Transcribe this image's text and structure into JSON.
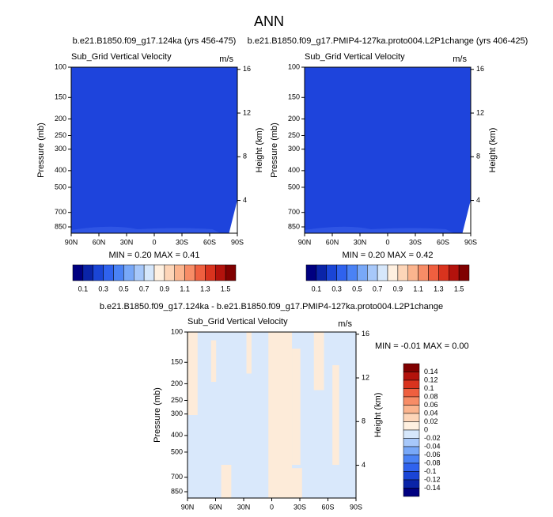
{
  "title": "ANN",
  "chart_data": [
    {
      "type": "contour",
      "subtitle": "b.e21.B1850.f09_g17.124ka (yrs 456-475)",
      "left_string": "Sub_Grid Vertical Velocity",
      "right_string": "m/s",
      "ylabel": "Pressure (mb)",
      "y2label": "Height (km)",
      "color": "#1e44dc",
      "xlim": [
        90,
        -90
      ],
      "xticks": [
        {
          "value": 90,
          "label": "90N"
        },
        {
          "value": 60,
          "label": "60N"
        },
        {
          "value": 30,
          "label": "30N"
        },
        0,
        {
          "value": -30,
          "label": "30S"
        },
        {
          "value": -60,
          "label": "60S"
        },
        {
          "value": -90,
          "label": "90S"
        }
      ],
      "ylim": [
        100,
        925
      ],
      "ylog": true,
      "yticks": [
        100,
        150,
        200,
        250,
        300,
        400,
        500,
        700,
        850
      ],
      "y2lim": [
        1,
        16.2
      ],
      "y2ticks": [
        16,
        12,
        8,
        4
      ],
      "stats": "MIN =  0.20  MAX =  0.41",
      "colorbar": {
        "orientation": "horizontal",
        "lim": [
          0,
          1.6
        ],
        "ticks": [
          0.1,
          0.3,
          0.5,
          0.7,
          0.9,
          1.1,
          1.3,
          1.5
        ],
        "colors": [
          "#000080",
          "#0a24a8",
          "#1a45d6",
          "#2f62ee",
          "#4a82f5",
          "#78a8f8",
          "#a7c8fa",
          "#d6e7fb",
          "#fff0e0",
          "#fdd5b8",
          "#fbb48e",
          "#f78c66",
          "#ef5f3f",
          "#d9331e",
          "#b3120c",
          "#800000"
        ]
      }
    },
    {
      "type": "contour",
      "subtitle": "b.e21.B1850.f09_g17.PMIP4-127ka.proto004.L2P1change (yrs 406-425)",
      "left_string": "Sub_Grid Vertical Velocity",
      "right_string": "m/s",
      "ylabel": "Pressure (mb)",
      "y2label": "Height (km)",
      "color": "#1e44dc",
      "xlim": [
        90,
        -90
      ],
      "xticks": [
        {
          "value": 90,
          "label": "90N"
        },
        {
          "value": 60,
          "label": "60N"
        },
        {
          "value": 30,
          "label": "30N"
        },
        0,
        {
          "value": -30,
          "label": "30S"
        },
        {
          "value": -60,
          "label": "60S"
        },
        {
          "value": -90,
          "label": "90S"
        }
      ],
      "ylim": [
        100,
        925
      ],
      "ylog": true,
      "yticks": [
        100,
        150,
        200,
        250,
        300,
        400,
        500,
        700,
        850
      ],
      "y2lim": [
        1,
        16.2
      ],
      "y2ticks": [
        16,
        12,
        8,
        4
      ],
      "stats": "MIN =  0.20  MAX =  0.42",
      "colorbar": {
        "orientation": "horizontal",
        "lim": [
          0,
          1.6
        ],
        "ticks": [
          0.1,
          0.3,
          0.5,
          0.7,
          0.9,
          1.1,
          1.3,
          1.5
        ],
        "colors": [
          "#000080",
          "#0a24a8",
          "#1a45d6",
          "#2f62ee",
          "#4a82f5",
          "#78a8f8",
          "#a7c8fa",
          "#d6e7fb",
          "#fff0e0",
          "#fdd5b8",
          "#fbb48e",
          "#f78c66",
          "#ef5f3f",
          "#d9331e",
          "#b3120c",
          "#800000"
        ]
      }
    },
    {
      "type": "contour",
      "subtitle": "b.e21.B1850.f09_g17.124ka - b.e21.B1850.f09_g17.PMIP4-127ka.proto004.L2P1change",
      "left_string": "Sub_Grid Vertical Velocity",
      "right_string": "m/s",
      "ylabel": "Pressure (mb)",
      "y2label": "Height (km)",
      "color": "#d9e8fb",
      "xlim": [
        90,
        -90
      ],
      "xticks": [
        {
          "value": 90,
          "label": "90N"
        },
        {
          "value": 60,
          "label": "60N"
        },
        {
          "value": 30,
          "label": "30N"
        },
        0,
        {
          "value": -30,
          "label": "30S"
        },
        {
          "value": -60,
          "label": "60S"
        },
        {
          "value": -90,
          "label": "90S"
        }
      ],
      "ylim": [
        100,
        925
      ],
      "ylog": true,
      "yticks": [
        100,
        150,
        200,
        250,
        300,
        400,
        500,
        700,
        850
      ],
      "y2lim": [
        1,
        16.2
      ],
      "y2ticks": [
        16,
        12,
        8,
        4
      ],
      "stats": "MIN =  -0.01  MAX =   0.00",
      "colorbar": {
        "orientation": "vertical",
        "lim": [
          0.16,
          -0.16
        ],
        "ticks": [
          0.14,
          0.12,
          0.1,
          0.08,
          0.06,
          0.04,
          0.02,
          0,
          -0.02,
          -0.04,
          -0.06,
          -0.08,
          -0.1,
          -0.12,
          -0.14
        ],
        "colors": [
          "#800000",
          "#b3120c",
          "#d9331e",
          "#ef5f3f",
          "#f78c66",
          "#fbb48e",
          "#fdd5b8",
          "#fff0e0",
          "#d6e7fb",
          "#a7c8fa",
          "#78a8f8",
          "#4a82f5",
          "#2f62ee",
          "#1a45d6",
          "#0a24a8",
          "#000080"
        ]
      }
    }
  ]
}
